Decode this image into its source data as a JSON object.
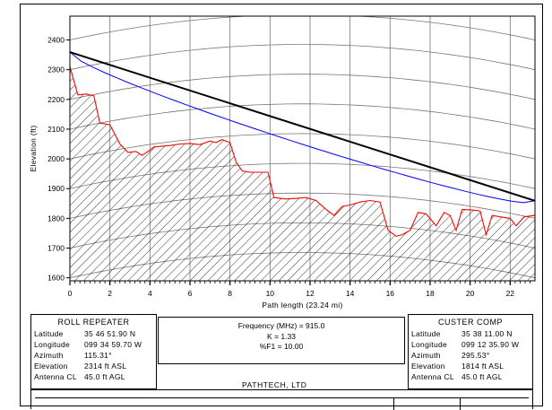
{
  "chart_data": {
    "type": "line",
    "xlabel": "Path length (23.24 mi)",
    "ylabel": "Elevation (ft)",
    "xlim": [
      0,
      23.24
    ],
    "ylim": [
      1590,
      2480
    ],
    "x_ticks": [
      0,
      2,
      4,
      6,
      8,
      10,
      12,
      14,
      16,
      18,
      20,
      22
    ],
    "y_ticks": [
      1600,
      1700,
      1800,
      1900,
      2000,
      2100,
      2200,
      2300,
      2400
    ],
    "grid": true,
    "series": [
      {
        "color": "#ff0000",
        "style": "terrain",
        "x": [
          0,
          0.4,
          0.8,
          1.2,
          1.5,
          2.0,
          2.5,
          2.9,
          3.3,
          3.6,
          3.9,
          4.2,
          4.5,
          5.0,
          5.5,
          6.0,
          6.5,
          7.0,
          7.3,
          7.6,
          8.0,
          8.3,
          8.6,
          9.0,
          9.5,
          9.9,
          10.2,
          10.8,
          11.4,
          11.8,
          12.3,
          12.8,
          13.2,
          13.6,
          14.0,
          14.5,
          15.0,
          15.5,
          15.9,
          16.3,
          16.6,
          17.0,
          17.4,
          17.8,
          18.3,
          18.7,
          19.0,
          19.3,
          19.6,
          20.1,
          20.5,
          20.8,
          21.1,
          21.5,
          22.0,
          22.3,
          22.7,
          23.24
        ],
        "y": [
          2310,
          2215,
          2218,
          2212,
          2120,
          2115,
          2050,
          2022,
          2025,
          2012,
          2025,
          2040,
          2042,
          2045,
          2050,
          2052,
          2048,
          2060,
          2055,
          2065,
          2055,
          1990,
          1960,
          1955,
          1955,
          1955,
          1870,
          1865,
          1868,
          1870,
          1860,
          1830,
          1810,
          1840,
          1845,
          1855,
          1860,
          1855,
          1760,
          1740,
          1745,
          1760,
          1820,
          1815,
          1775,
          1820,
          1810,
          1760,
          1830,
          1828,
          1825,
          1745,
          1810,
          1805,
          1800,
          1775,
          1805,
          1810
        ]
      },
      {
        "color": "#000000",
        "style": "line-of-sight",
        "x": [
          0,
          23.24
        ],
        "y": [
          2359,
          1859
        ]
      },
      {
        "color": "#0000ff",
        "style": "first-fresnel",
        "x": [
          0,
          23.24
        ],
        "y": [
          2359,
          1859
        ]
      }
    ]
  },
  "left_site": {
    "name": "ROLL REPEATER",
    "fields": [
      {
        "label": "Latitude",
        "value": "35 46 51.90 N"
      },
      {
        "label": "Longitude",
        "value": "099 34 59.70 W"
      },
      {
        "label": "Azimuth",
        "value": "115.31°"
      },
      {
        "label": "Elevation",
        "value": "2314 ft ASL"
      },
      {
        "label": "Antenna CL",
        "value": "45.0 ft AGL"
      }
    ]
  },
  "right_site": {
    "name": "CUSTER COMP",
    "fields": [
      {
        "label": "Latitude",
        "value": "35 38 11.00 N"
      },
      {
        "label": "Longitude",
        "value": "099 12 35.90 W"
      },
      {
        "label": "Azimuth",
        "value": "295.53°"
      },
      {
        "label": "Elevation",
        "value": "1814 ft ASL"
      },
      {
        "label": "Antenna CL",
        "value": "45.0 ft AGL"
      }
    ]
  },
  "params": {
    "frequency": "Frequency (MHz) = 915.0",
    "k": "K = 1.33",
    "f1": "%F1 = 10.00"
  },
  "company": "PATHTECH, LTD"
}
